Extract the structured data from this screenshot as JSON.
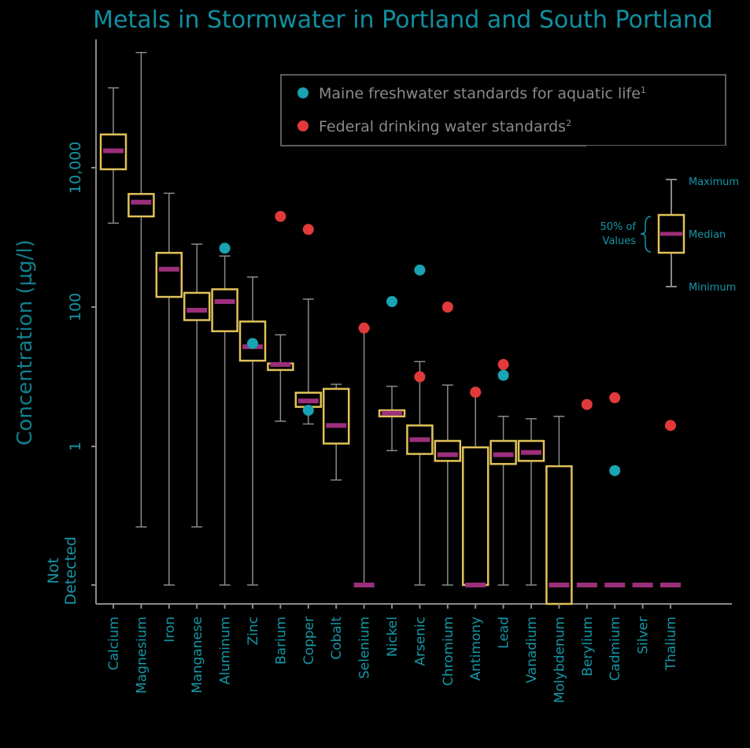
{
  "chart_data": {
    "type": "box",
    "title": "Metals in Stormwater in Portland and South Portland",
    "ylabel": "Concentration (µg/l)",
    "y_scale": "log",
    "y_ticks": [
      {
        "value": 1,
        "label": "1"
      },
      {
        "value": 100,
        "label": "100"
      },
      {
        "value": 10000,
        "label": "10,000"
      }
    ],
    "not_detected_label": [
      "Not",
      "Detected"
    ],
    "legend": {
      "placement": "top-right",
      "items": [
        {
          "label": "Maine freshwater standards for aquatic life",
          "sup": "1",
          "color": "#1aa3b3"
        },
        {
          "label": "Federal drinking water standards",
          "sup": "2",
          "color": "#e23a3a"
        }
      ]
    },
    "key": {
      "maximum": "Maximum",
      "median": "Median",
      "minimum": "Minimum",
      "iqr": [
        "50% of",
        "Values"
      ]
    },
    "colors": {
      "box": "#e0c25a",
      "median": "#9b2f7c",
      "whisker": "#8a8a8a",
      "aquatic": "#1aa3b3",
      "drinking": "#e23a3a",
      "text": "#1596a6"
    },
    "metals": [
      {
        "name": "Calcium",
        "min": 1600,
        "q1": 9500,
        "median": 17500,
        "q3": 30000,
        "max": 140000,
        "aquatic": null,
        "drinking": null
      },
      {
        "name": "Magnesium",
        "min": 0.07,
        "q1": 2000,
        "median": 3200,
        "q3": 4200,
        "max": 450000,
        "aquatic": null,
        "drinking": null
      },
      {
        "name": "Iron",
        "min": null,
        "q1": 140,
        "median": 350,
        "q3": 600,
        "max": 4300,
        "aquatic": null,
        "drinking": null
      },
      {
        "name": "Manganese",
        "min": 0.07,
        "q1": 65,
        "median": 90,
        "q3": 160,
        "max": 800,
        "aquatic": null,
        "drinking": null
      },
      {
        "name": "Aluminum",
        "min": null,
        "q1": 45,
        "median": 120,
        "q3": 180,
        "max": 540,
        "aquatic": 700,
        "drinking": null
      },
      {
        "name": "Zinc",
        "min": null,
        "q1": 17,
        "median": 27,
        "q3": 62,
        "max": 270,
        "aquatic": 30,
        "drinking": null
      },
      {
        "name": "Barium",
        "min": 2.3,
        "q1": 12.5,
        "median": 15,
        "q3": 15.5,
        "max": 40,
        "aquatic": null,
        "drinking": 2000
      },
      {
        "name": "Copper",
        "min": 2.1,
        "q1": 3.7,
        "median": 4.5,
        "q3": 5.9,
        "max": 130,
        "aquatic": 3.3,
        "drinking": 1300
      },
      {
        "name": "Cobalt",
        "min": 0.33,
        "q1": 1.1,
        "median": 2,
        "q3": 6.7,
        "max": 7.8,
        "aquatic": null,
        "drinking": null
      },
      {
        "name": "Selenium",
        "min": null,
        "q1": null,
        "median": "nd",
        "q3": null,
        "max": 50,
        "aquatic": null,
        "drinking": 50
      },
      {
        "name": "Nickel",
        "min": 0.87,
        "q1": 2.7,
        "median": 3,
        "q3": 3.3,
        "max": 7.3,
        "aquatic": 120,
        "drinking": null
      },
      {
        "name": "Arsenic",
        "min": null,
        "q1": 0.78,
        "median": 1.25,
        "q3": 2,
        "max": 16.5,
        "aquatic": 340,
        "drinking": 10
      },
      {
        "name": "Chromium",
        "min": null,
        "q1": 0.62,
        "median": 0.76,
        "q3": 1.2,
        "max": 7.6,
        "aquatic": null,
        "drinking": 100
      },
      {
        "name": "Antimony",
        "min": null,
        "q1": "nd",
        "median": "nd",
        "q3": 0.97,
        "max": 5.9,
        "aquatic": null,
        "drinking": 6
      },
      {
        "name": "Lead",
        "min": null,
        "q1": 0.56,
        "median": 0.76,
        "q3": 1.2,
        "max": 2.7,
        "aquatic": 10.5,
        "drinking": 15
      },
      {
        "name": "Vanadium",
        "min": null,
        "q1": 0.62,
        "median": 0.82,
        "q3": 1.2,
        "max": 2.5,
        "aquatic": null,
        "drinking": null
      },
      {
        "name": "Molybdenum",
        "min": null,
        "q1": "bottom",
        "median": "nd",
        "q3": 0.52,
        "max": 2.7,
        "aquatic": null,
        "drinking": null
      },
      {
        "name": "Berylium",
        "min": null,
        "q1": null,
        "median": "nd",
        "q3": null,
        "max": null,
        "aquatic": null,
        "drinking": 4
      },
      {
        "name": "Cadmium",
        "min": null,
        "q1": null,
        "median": "nd",
        "q3": null,
        "max": null,
        "aquatic": 0.45,
        "drinking": 5
      },
      {
        "name": "Silver",
        "min": null,
        "q1": null,
        "median": "nd",
        "q3": null,
        "max": null,
        "aquatic": null,
        "drinking": null
      },
      {
        "name": "Thalium",
        "min": null,
        "q1": null,
        "median": "nd",
        "q3": null,
        "max": null,
        "aquatic": null,
        "drinking": 2
      }
    ]
  }
}
